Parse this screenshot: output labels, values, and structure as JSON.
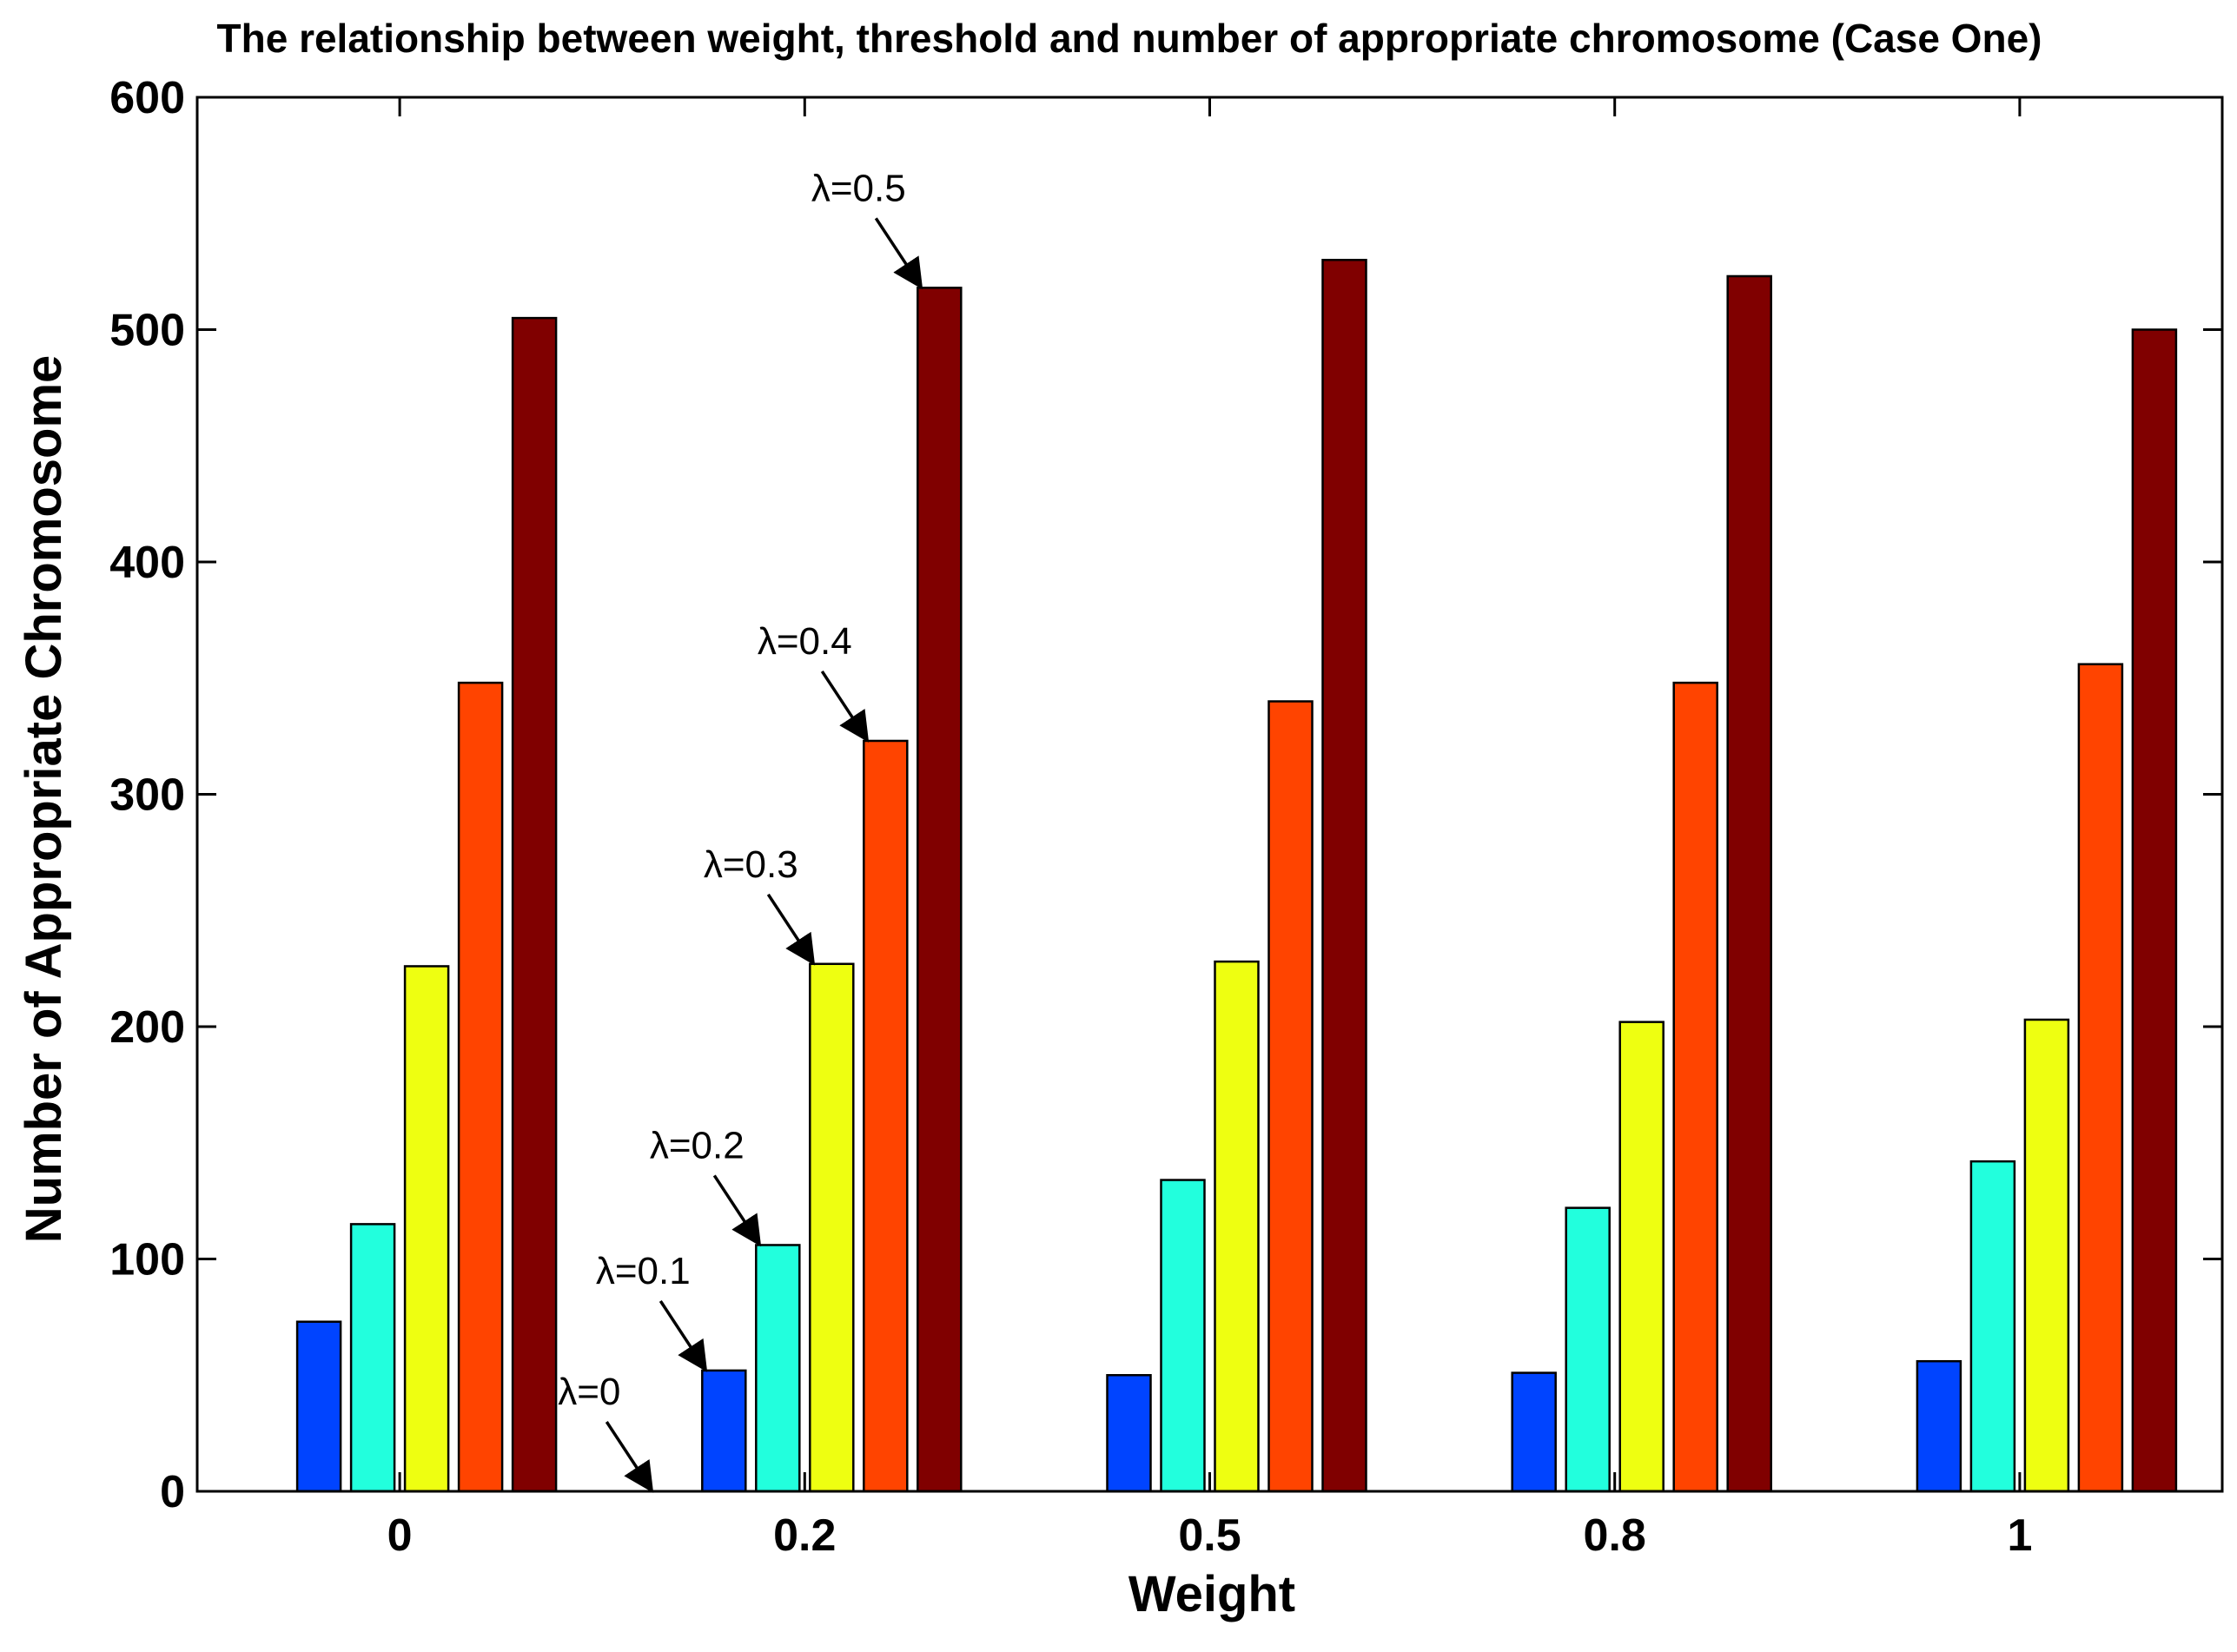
{
  "chart_data": {
    "type": "bar",
    "title": "The relationship between weight, threshold and number of appropriate chromosome (Case One)",
    "xlabel": "Weight",
    "ylabel": "Number of Appropriate Chromosome",
    "categories": [
      "0",
      "0.2",
      "0.5",
      "0.8",
      "1"
    ],
    "ylim": [
      0,
      600
    ],
    "yticks": [
      "0",
      "100",
      "200",
      "300",
      "400",
      "500",
      "600"
    ],
    "grid": false,
    "series": [
      {
        "name": "λ=0",
        "color": "#000000",
        "values": [
          0,
          0,
          0,
          0,
          0
        ]
      },
      {
        "name": "λ=0.1",
        "color": "#0044ff",
        "values": [
          73,
          52,
          50,
          51,
          56
        ]
      },
      {
        "name": "λ=0.2",
        "color": "#22ffdd",
        "values": [
          115,
          106,
          134,
          122,
          142
        ]
      },
      {
        "name": "λ=0.3",
        "color": "#eeff11",
        "values": [
          226,
          227,
          228,
          202,
          203
        ]
      },
      {
        "name": "λ=0.4",
        "color": "#ff4400",
        "values": [
          348,
          323,
          340,
          348,
          356
        ]
      },
      {
        "name": "λ=0.5",
        "color": "#800000",
        "values": [
          505,
          518,
          530,
          523,
          500
        ]
      }
    ],
    "annotations": [
      {
        "text": "λ=0",
        "category": "0.2",
        "series": 0
      },
      {
        "text": "λ=0.1",
        "category": "0.2",
        "series": 1
      },
      {
        "text": "λ=0.2",
        "category": "0.2",
        "series": 2
      },
      {
        "text": "λ=0.3",
        "category": "0.2",
        "series": 3
      },
      {
        "text": "λ=0.4",
        "category": "0.2",
        "series": 4
      },
      {
        "text": "λ=0.5",
        "category": "0.2",
        "series": 5
      }
    ]
  }
}
